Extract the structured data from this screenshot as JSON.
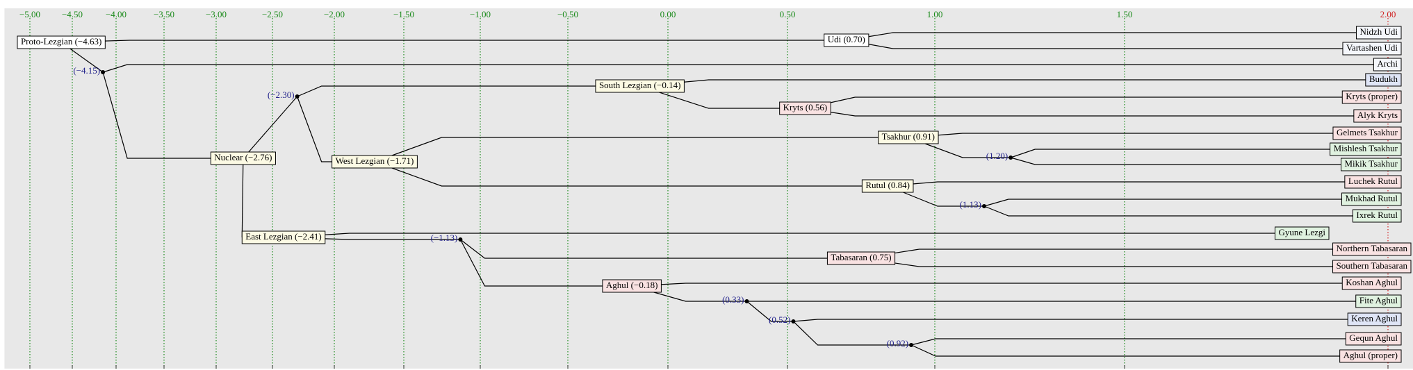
{
  "chart_data": {
    "type": "tree",
    "xticks": [
      {
        "value": -5,
        "label": "−5.00"
      },
      {
        "value": -4.5,
        "label": "−4.50"
      },
      {
        "value": -4,
        "label": "−4.00"
      },
      {
        "value": -3.5,
        "label": "−3.50"
      },
      {
        "value": -3,
        "label": "−3.00"
      },
      {
        "value": -2.5,
        "label": "−2.50"
      },
      {
        "value": -2,
        "label": "−2.00"
      },
      {
        "value": -1.5,
        "label": "−1.50"
      },
      {
        "value": -1,
        "label": "−1.00"
      },
      {
        "value": -0.5,
        "label": "−0.50"
      },
      {
        "value": 0,
        "label": "0.00"
      },
      {
        "value": 0.5,
        "label": "0.50"
      },
      {
        "value": 1,
        "label": "1.00"
      },
      {
        "value": 1.5,
        "label": "1.50"
      },
      {
        "value": 2,
        "label": "2.00"
      }
    ],
    "xlim": [
      -5.3,
      2.05
    ],
    "grid": true,
    "grid_color": "#1a8a1a",
    "limit_color": "#d02020",
    "dot_label_color": "#22228b",
    "tree": {
      "label": "Proto-Lezgian (−4.63)",
      "value": -4.63,
      "marker": "box",
      "color": "#ffffff",
      "children": [
        {
          "label": "Udi (0.70)",
          "value": 0.7,
          "marker": "box",
          "color": "#ffffff",
          "children": [
            {
              "label": "Nidzh Udi",
              "color": "#f4f6fb"
            },
            {
              "label": "Vartashen Udi",
              "color": "#f4f6fb"
            }
          ]
        },
        {
          "label": "(−4.15)",
          "value": -4.15,
          "marker": "dot",
          "children": [
            {
              "label": "Archi",
              "color": "#f4f6fb"
            },
            {
              "label": "Nuclear (−2.76)",
              "value": -2.76,
              "marker": "box",
              "color": "#fcfae4",
              "children": [
                {
                  "label": "(−2.30)",
                  "value": -2.3,
                  "marker": "dot",
                  "children": [
                    {
                      "label": "South Lezgian (−0.14)",
                      "value": -0.14,
                      "marker": "box",
                      "color": "#fcfae4",
                      "children": [
                        {
                          "label": "Budukh",
                          "color": "#dfe5f6"
                        },
                        {
                          "label": "Kryts (0.56)",
                          "value": 0.56,
                          "marker": "box",
                          "color": "#f9e2e2",
                          "children": [
                            {
                              "label": "Kryts (proper)",
                              "color": "#f9e2e2"
                            },
                            {
                              "label": "Alyk Kryts",
                              "color": "#f9e2e2"
                            }
                          ]
                        }
                      ]
                    },
                    {
                      "label": "West Lezgian (−1.71)",
                      "value": -1.71,
                      "marker": "box",
                      "color": "#fcfae4",
                      "children": [
                        {
                          "label": "Tsakhur (0.91)",
                          "value": 0.91,
                          "marker": "box",
                          "color": "#fcfae4",
                          "children": [
                            {
                              "label": "Gelmets Tsakhur",
                              "color": "#f9e2e2"
                            },
                            {
                              "label": "(1.20)",
                              "value": 1.2,
                              "marker": "dot",
                              "children": [
                                {
                                  "label": "Mishlesh Tsakhur",
                                  "color": "#e0f2e0"
                                },
                                {
                                  "label": "Mikik Tsakhur",
                                  "color": "#e0f2e0"
                                }
                              ]
                            }
                          ]
                        },
                        {
                          "label": "Rutul (0.84)",
                          "value": 0.84,
                          "marker": "box",
                          "color": "#fcfae4",
                          "children": [
                            {
                              "label": "Luchek Rutul",
                              "color": "#f9e2e2"
                            },
                            {
                              "label": "(1.13)",
                              "value": 1.13,
                              "marker": "dot",
                              "children": [
                                {
                                  "label": "Mukhad Rutul",
                                  "color": "#e0f2e0"
                                },
                                {
                                  "label": "Ixrek Rutul",
                                  "color": "#e0f2e0"
                                }
                              ]
                            }
                          ]
                        }
                      ]
                    }
                  ]
                },
                {
                  "label": "East Lezgian (−2.41)",
                  "value": -2.41,
                  "marker": "box",
                  "color": "#fcfae4",
                  "children": [
                    {
                      "label": "Gyune Lezgi",
                      "color": "#e0f2e0"
                    },
                    {
                      "label": "(−1.13)",
                      "value": -1.13,
                      "marker": "dot",
                      "children": [
                        {
                          "label": "Tabasaran (0.75)",
                          "value": 0.75,
                          "marker": "box",
                          "color": "#f9e2e2",
                          "children": [
                            {
                              "label": "Northern Tabasaran",
                              "color": "#f9e2e2"
                            },
                            {
                              "label": "Southern Tabasaran",
                              "color": "#f9e2e2"
                            }
                          ]
                        },
                        {
                          "label": "Aghul (−0.18)",
                          "value": -0.18,
                          "marker": "box",
                          "color": "#f9e2e2",
                          "children": [
                            {
                              "label": "Koshan Aghul",
                              "color": "#f9e2e2"
                            },
                            {
                              "label": "(0.33)",
                              "value": 0.33,
                              "marker": "dot",
                              "children": [
                                {
                                  "label": "Fite Aghul",
                                  "color": "#e0f2e0"
                                },
                                {
                                  "label": "(0.52)",
                                  "value": 0.52,
                                  "marker": "dot",
                                  "children": [
                                    {
                                      "label": "Keren Aghul",
                                      "color": "#dfe5f6"
                                    },
                                    {
                                      "label": "(0.92)",
                                      "value": 0.92,
                                      "marker": "dot",
                                      "children": [
                                        {
                                          "label": "Gequn Aghul",
                                          "color": "#f9e2e2"
                                        },
                                        {
                                          "label": "Aghul (proper)",
                                          "color": "#f9e2e2"
                                        }
                                      ]
                                    }
                                  ]
                                }
                              ]
                            }
                          ]
                        }
                      ]
                    }
                  ]
                }
              ]
            }
          ]
        }
      ]
    }
  }
}
